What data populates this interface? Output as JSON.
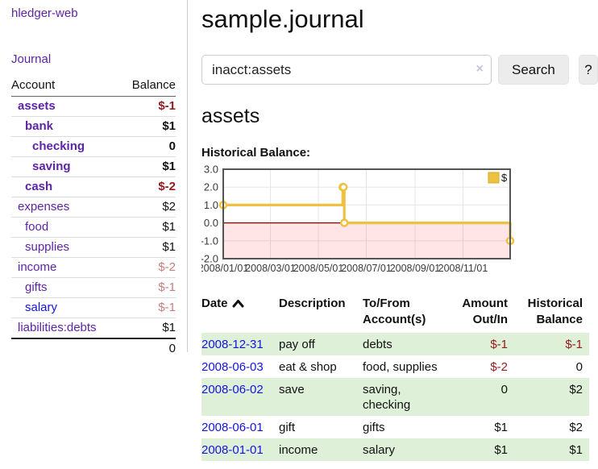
{
  "app": {
    "title": "hledger-web"
  },
  "sidebar": {
    "journal_link": "Journal",
    "accounts": {
      "headers": {
        "account": "Account",
        "balance": "Balance"
      },
      "rows": [
        {
          "account": "assets",
          "indent": 1,
          "bold": true,
          "balance": "$-1",
          "balance_tone": "neg-dark",
          "link_color": "purple"
        },
        {
          "account": "bank",
          "indent": 2,
          "bold": true,
          "balance": "$1",
          "balance_tone": "normal",
          "link_color": "purple"
        },
        {
          "account": "checking",
          "indent": 3,
          "bold": true,
          "balance": "0",
          "balance_tone": "normal",
          "link_color": "purple"
        },
        {
          "account": "saving",
          "indent": 3,
          "bold": true,
          "balance": "$1",
          "balance_tone": "normal",
          "link_color": "purple"
        },
        {
          "account": "cash",
          "indent": 2,
          "bold": true,
          "balance": "$-2",
          "balance_tone": "neg-dark",
          "link_color": "purple"
        },
        {
          "account": "expenses",
          "indent": 1,
          "bold": false,
          "balance": "$2",
          "balance_tone": "normal",
          "link_color": "purple"
        },
        {
          "account": "food",
          "indent": 2,
          "bold": false,
          "balance": "$1",
          "balance_tone": "normal",
          "link_color": "purple"
        },
        {
          "account": "supplies",
          "indent": 2,
          "bold": false,
          "balance": "$1",
          "balance_tone": "normal",
          "link_color": "purple"
        },
        {
          "account": "income",
          "indent": 1,
          "bold": false,
          "balance": "$-2",
          "balance_tone": "neg-light",
          "link_color": "purple"
        },
        {
          "account": "gifts",
          "indent": 2,
          "bold": false,
          "balance": "$-1",
          "balance_tone": "neg-light",
          "link_color": "purple"
        },
        {
          "account": "salary",
          "indent": 2,
          "bold": false,
          "balance": "$-1",
          "balance_tone": "neg-light",
          "link_color": "blue"
        },
        {
          "account": "liabilities:debts",
          "indent": 1,
          "bold": false,
          "balance": "$1",
          "balance_tone": "normal",
          "link_color": "purple"
        }
      ],
      "total": "0"
    }
  },
  "main": {
    "title": "sample.journal",
    "search": {
      "value": "inacct:assets",
      "clear_icon": "×",
      "search_button": "Search",
      "help_button": "?"
    },
    "account_heading": "assets",
    "chart_label": "Historical Balance:"
  },
  "chart_data": {
    "type": "line",
    "title": "Historical Balance",
    "step": true,
    "series": [
      {
        "name": "$",
        "color": "#edc240",
        "points": [
          {
            "date": "2008-01-01",
            "value": 1
          },
          {
            "date": "2008-06-01",
            "value": 2
          },
          {
            "date": "2008-06-02",
            "value": 2
          },
          {
            "date": "2008-06-03",
            "value": 0
          },
          {
            "date": "2008-12-31",
            "value": -1
          }
        ]
      }
    ],
    "x_range": [
      "2008-01-01",
      "2008-12-31"
    ],
    "x_ticks": [
      "2008/01/01",
      "2008/03/01",
      "2008/05/01",
      "2008/07/01",
      "2008/09/01",
      "2008/11/01"
    ],
    "y_range": [
      -2,
      3
    ],
    "y_ticks": [
      "3.0",
      "2.0",
      "1.0",
      "0.0",
      "-1.0",
      "-2.0"
    ],
    "grid": true,
    "legend": {
      "label": "$",
      "position": "top-right"
    },
    "negative_region_fill": "rgba(255,0,0,0.10)",
    "zero_line_color": "#800000",
    "border_color": "#545454",
    "grid_color": "#e6e6e6"
  },
  "register": {
    "headers": {
      "date": "Date",
      "description": "Description",
      "accounts": "To/From Account(s)",
      "amount": "Amount Out/In",
      "balance": "Historical Balance"
    },
    "sort_icon": "chevron-up",
    "rows": [
      {
        "date": "2008-12-31",
        "description": "pay off",
        "accounts": "debts",
        "amount": "$-1",
        "amount_tone": "neg-dark",
        "balance": "$-1",
        "balance_tone": "neg-dark"
      },
      {
        "date": "2008-06-03",
        "description": "eat & shop",
        "accounts": "food, supplies",
        "amount": "$-2",
        "amount_tone": "neg-dark",
        "balance": "0",
        "balance_tone": "normal"
      },
      {
        "date": "2008-06-02",
        "description": "save",
        "accounts": "saving, checking",
        "amount": "0",
        "amount_tone": "normal",
        "balance": "$2",
        "balance_tone": "normal"
      },
      {
        "date": "2008-06-01",
        "description": "gift",
        "accounts": "gifts",
        "amount": "$1",
        "amount_tone": "normal",
        "balance": "$2",
        "balance_tone": "normal"
      },
      {
        "date": "2008-01-01",
        "description": "income",
        "accounts": "salary",
        "amount": "$1",
        "amount_tone": "normal",
        "balance": "$1",
        "balance_tone": "normal"
      }
    ]
  },
  "colors": {
    "link_purple": "#5d24a5",
    "link_blue": "#1414e0",
    "negative_dark": "#941a1e",
    "negative_light": "#c67d7d",
    "row_stripe_green": "#dff0d8",
    "series_gold": "#edc240",
    "negative_region_pink": "#ffe5e5",
    "zero_line_red": "#800000",
    "chart_border_gray": "#545454"
  }
}
